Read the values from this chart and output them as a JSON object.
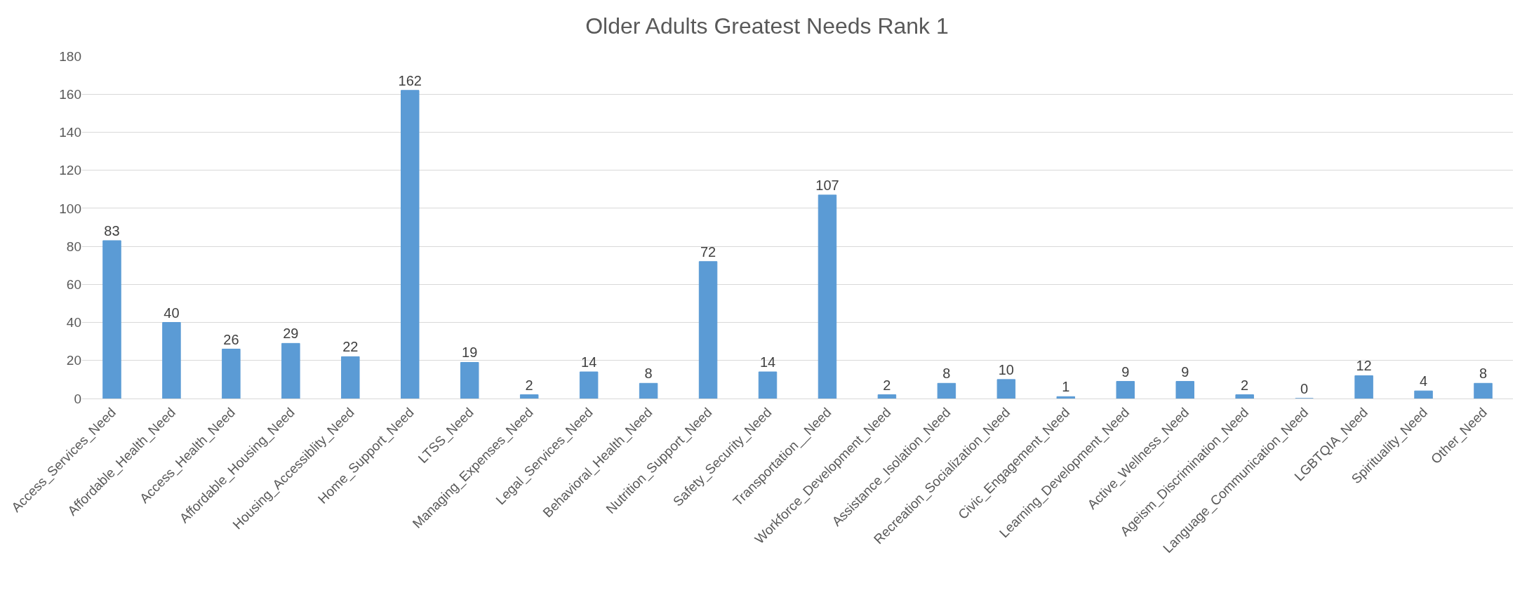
{
  "chart_data": {
    "type": "bar",
    "title": "Older Adults Greatest Needs Rank 1",
    "categories": [
      "Access_Services_Need",
      "Affordable_Health_Need",
      "Access_Health_Need",
      "Affordable_Housing_Need",
      "Housing_Accessiblity_Need",
      "Home_Support_Need",
      "LTSS_Need",
      "Managing_Expenses_Need",
      "Legal_Services_Need",
      "Behavioral_Health_Need",
      "Nutrition_Support_Need",
      "Safety_Security_Need",
      "Transportation__Need",
      "Workforce_Development_Need",
      "Assistance_Isolation_Need",
      "Recreation_Socialization_Need",
      "Civic_Engagement_Need",
      "Learning_Development_Need",
      "Active_Wellness_Need",
      "Ageism_Discrimination_Need",
      "Language_Communication_Need",
      "LGBTQIA_Need",
      "Spirituality_Need",
      "Other_Need"
    ],
    "values": [
      83,
      40,
      26,
      29,
      22,
      162,
      19,
      2,
      14,
      8,
      72,
      14,
      107,
      2,
      8,
      10,
      1,
      9,
      9,
      2,
      0,
      12,
      4,
      8
    ],
    "color": "#5b9bd5",
    "ylim": [
      0,
      180
    ],
    "yticks": [
      0,
      20,
      40,
      60,
      80,
      100,
      120,
      140,
      160,
      180
    ],
    "grid": "y",
    "data_labels": true
  }
}
